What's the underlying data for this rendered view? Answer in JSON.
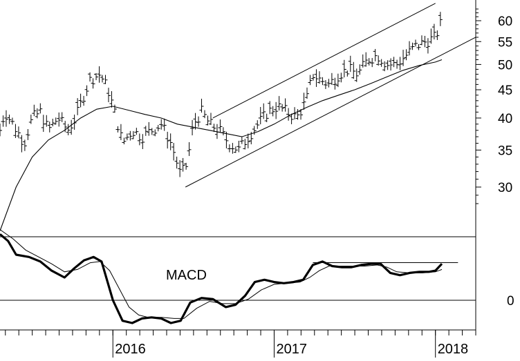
{
  "chart_data": [
    {
      "type": "line",
      "chart_kind": "price bar chart (OHLC) with moving average and trend channel",
      "scale": "log",
      "ylim": [
        25,
        65
      ],
      "y_ticks": [
        {
          "label": "60",
          "value": 60
        },
        {
          "label": "55",
          "value": 55
        },
        {
          "label": "50",
          "value": 50
        },
        {
          "label": "45",
          "value": 45
        },
        {
          "label": "40",
          "value": 40
        },
        {
          "label": "35",
          "value": 35
        },
        {
          "label": "30",
          "value": 30
        }
      ],
      "x_label_ticks": [
        {
          "label": "2016",
          "value": 2016.0
        },
        {
          "label": "2017",
          "value": 2017.0
        },
        {
          "label": "2018",
          "value": 2018.0
        }
      ],
      "xlim": [
        2015.3,
        2018.25
      ],
      "price_path": [
        [
          2015.3,
          38
        ],
        [
          2015.33,
          41
        ],
        [
          2015.38,
          39
        ],
        [
          2015.45,
          36
        ],
        [
          2015.5,
          40
        ],
        [
          2015.55,
          41
        ],
        [
          2015.6,
          38
        ],
        [
          2015.66,
          40
        ],
        [
          2015.72,
          38
        ],
        [
          2015.77,
          40
        ],
        [
          2015.82,
          44
        ],
        [
          2015.86,
          47
        ],
        [
          2015.92,
          48
        ],
        [
          2015.97,
          45
        ],
        [
          2016.02,
          40
        ],
        [
          2016.06,
          36
        ],
        [
          2016.12,
          38
        ],
        [
          2016.18,
          37
        ],
        [
          2016.24,
          38
        ],
        [
          2016.3,
          39
        ],
        [
          2016.36,
          36
        ],
        [
          2016.42,
          31.5
        ],
        [
          2016.46,
          33
        ],
        [
          2016.5,
          39
        ],
        [
          2016.55,
          41
        ],
        [
          2016.6,
          39
        ],
        [
          2016.66,
          38
        ],
        [
          2016.72,
          36
        ],
        [
          2016.78,
          35
        ],
        [
          2016.84,
          37
        ],
        [
          2016.9,
          39
        ],
        [
          2016.96,
          41
        ],
        [
          2017.02,
          42
        ],
        [
          2017.08,
          41
        ],
        [
          2017.14,
          40
        ],
        [
          2017.2,
          43
        ],
        [
          2017.24,
          48
        ],
        [
          2017.28,
          47
        ],
        [
          2017.34,
          46
        ],
        [
          2017.4,
          48
        ],
        [
          2017.46,
          49
        ],
        [
          2017.52,
          48
        ],
        [
          2017.58,
          51
        ],
        [
          2017.64,
          52
        ],
        [
          2017.7,
          50
        ],
        [
          2017.76,
          50
        ],
        [
          2017.82,
          52
        ],
        [
          2017.88,
          54
        ],
        [
          2017.94,
          55
        ],
        [
          2018.0,
          56
        ],
        [
          2018.04,
          60
        ]
      ],
      "moving_average": [
        [
          2015.3,
          25.0
        ],
        [
          2015.4,
          30.0
        ],
        [
          2015.5,
          34.0
        ],
        [
          2015.6,
          36.5
        ],
        [
          2015.7,
          38.0
        ],
        [
          2015.8,
          40.0
        ],
        [
          2015.9,
          41.5
        ],
        [
          2016.0,
          42.0
        ],
        [
          2016.1,
          41.3
        ],
        [
          2016.2,
          40.6
        ],
        [
          2016.3,
          40.0
        ],
        [
          2016.4,
          39.0
        ],
        [
          2016.5,
          38.5
        ],
        [
          2016.6,
          38.0
        ],
        [
          2016.7,
          37.5
        ],
        [
          2016.8,
          37.0
        ],
        [
          2016.9,
          37.8
        ],
        [
          2017.0,
          39.0
        ],
        [
          2017.1,
          40.5
        ],
        [
          2017.2,
          41.8
        ],
        [
          2017.3,
          43.0
        ],
        [
          2017.4,
          44.0
        ],
        [
          2017.5,
          45.0
        ],
        [
          2017.6,
          46.2
        ],
        [
          2017.7,
          47.5
        ],
        [
          2017.8,
          48.8
        ],
        [
          2017.9,
          49.8
        ],
        [
          2018.0,
          50.5
        ],
        [
          2018.04,
          51.0
        ]
      ],
      "trend_lines": [
        {
          "role": "channel upper",
          "from": [
            2016.62,
            40.0
          ],
          "to": [
            2018.0,
            64.5
          ]
        },
        {
          "role": "channel lower",
          "from": [
            2016.45,
            30.0
          ],
          "to": [
            2018.25,
            56.0
          ]
        }
      ]
    },
    {
      "type": "line",
      "chart_kind": "MACD oscillator",
      "title": "MACD",
      "y_ticks": [
        {
          "label": "0",
          "value": 0
        }
      ],
      "ylim": [
        -1.4,
        3.3
      ],
      "macd": [
        [
          2015.3,
          2.9
        ],
        [
          2015.35,
          2.6
        ],
        [
          2015.4,
          2.0
        ],
        [
          2015.48,
          1.9
        ],
        [
          2015.55,
          1.7
        ],
        [
          2015.62,
          1.3
        ],
        [
          2015.7,
          1.0
        ],
        [
          2015.76,
          1.4
        ],
        [
          2015.82,
          1.75
        ],
        [
          2015.88,
          1.9
        ],
        [
          2015.93,
          1.7
        ],
        [
          2016.0,
          0.0
        ],
        [
          2016.06,
          -0.9
        ],
        [
          2016.12,
          -1.0
        ],
        [
          2016.18,
          -0.8
        ],
        [
          2016.24,
          -0.75
        ],
        [
          2016.3,
          -0.8
        ],
        [
          2016.36,
          -1.0
        ],
        [
          2016.42,
          -0.9
        ],
        [
          2016.48,
          -0.1
        ],
        [
          2016.55,
          0.1
        ],
        [
          2016.62,
          0.05
        ],
        [
          2016.7,
          -0.3
        ],
        [
          2016.76,
          -0.2
        ],
        [
          2016.82,
          0.2
        ],
        [
          2016.88,
          0.8
        ],
        [
          2016.94,
          0.9
        ],
        [
          2017.0,
          0.8
        ],
        [
          2017.06,
          0.75
        ],
        [
          2017.12,
          0.8
        ],
        [
          2017.18,
          0.9
        ],
        [
          2017.24,
          1.55
        ],
        [
          2017.3,
          1.7
        ],
        [
          2017.36,
          1.5
        ],
        [
          2017.42,
          1.45
        ],
        [
          2017.48,
          1.45
        ],
        [
          2017.54,
          1.55
        ],
        [
          2017.6,
          1.6
        ],
        [
          2017.66,
          1.6
        ],
        [
          2017.72,
          1.2
        ],
        [
          2017.78,
          1.1
        ],
        [
          2017.84,
          1.2
        ],
        [
          2017.9,
          1.25
        ],
        [
          2017.96,
          1.25
        ],
        [
          2018.0,
          1.3
        ],
        [
          2018.04,
          1.6
        ]
      ],
      "signal": [
        [
          2015.3,
          3.1
        ],
        [
          2015.38,
          2.7
        ],
        [
          2015.46,
          2.2
        ],
        [
          2015.54,
          1.9
        ],
        [
          2015.62,
          1.6
        ],
        [
          2015.7,
          1.25
        ],
        [
          2015.78,
          1.35
        ],
        [
          2015.86,
          1.65
        ],
        [
          2015.92,
          1.7
        ],
        [
          2015.98,
          1.3
        ],
        [
          2016.04,
          0.5
        ],
        [
          2016.1,
          -0.3
        ],
        [
          2016.16,
          -0.65
        ],
        [
          2016.22,
          -0.75
        ],
        [
          2016.3,
          -0.75
        ],
        [
          2016.38,
          -0.8
        ],
        [
          2016.44,
          -0.8
        ],
        [
          2016.52,
          -0.35
        ],
        [
          2016.6,
          -0.05
        ],
        [
          2016.68,
          -0.15
        ],
        [
          2016.76,
          -0.15
        ],
        [
          2016.84,
          0.05
        ],
        [
          2016.92,
          0.45
        ],
        [
          2017.0,
          0.7
        ],
        [
          2017.08,
          0.75
        ],
        [
          2017.16,
          0.8
        ],
        [
          2017.22,
          1.0
        ],
        [
          2017.28,
          1.3
        ],
        [
          2017.34,
          1.5
        ],
        [
          2017.4,
          1.5
        ],
        [
          2017.48,
          1.5
        ],
        [
          2017.56,
          1.5
        ],
        [
          2017.64,
          1.55
        ],
        [
          2017.7,
          1.45
        ],
        [
          2017.76,
          1.25
        ],
        [
          2017.84,
          1.2
        ],
        [
          2017.92,
          1.2
        ],
        [
          2018.0,
          1.25
        ],
        [
          2018.04,
          1.35
        ]
      ],
      "trend_lines": [
        {
          "role": "horizontal resistance",
          "from": [
            2017.24,
            1.65
          ],
          "to": [
            2018.14,
            1.65
          ]
        }
      ]
    }
  ]
}
